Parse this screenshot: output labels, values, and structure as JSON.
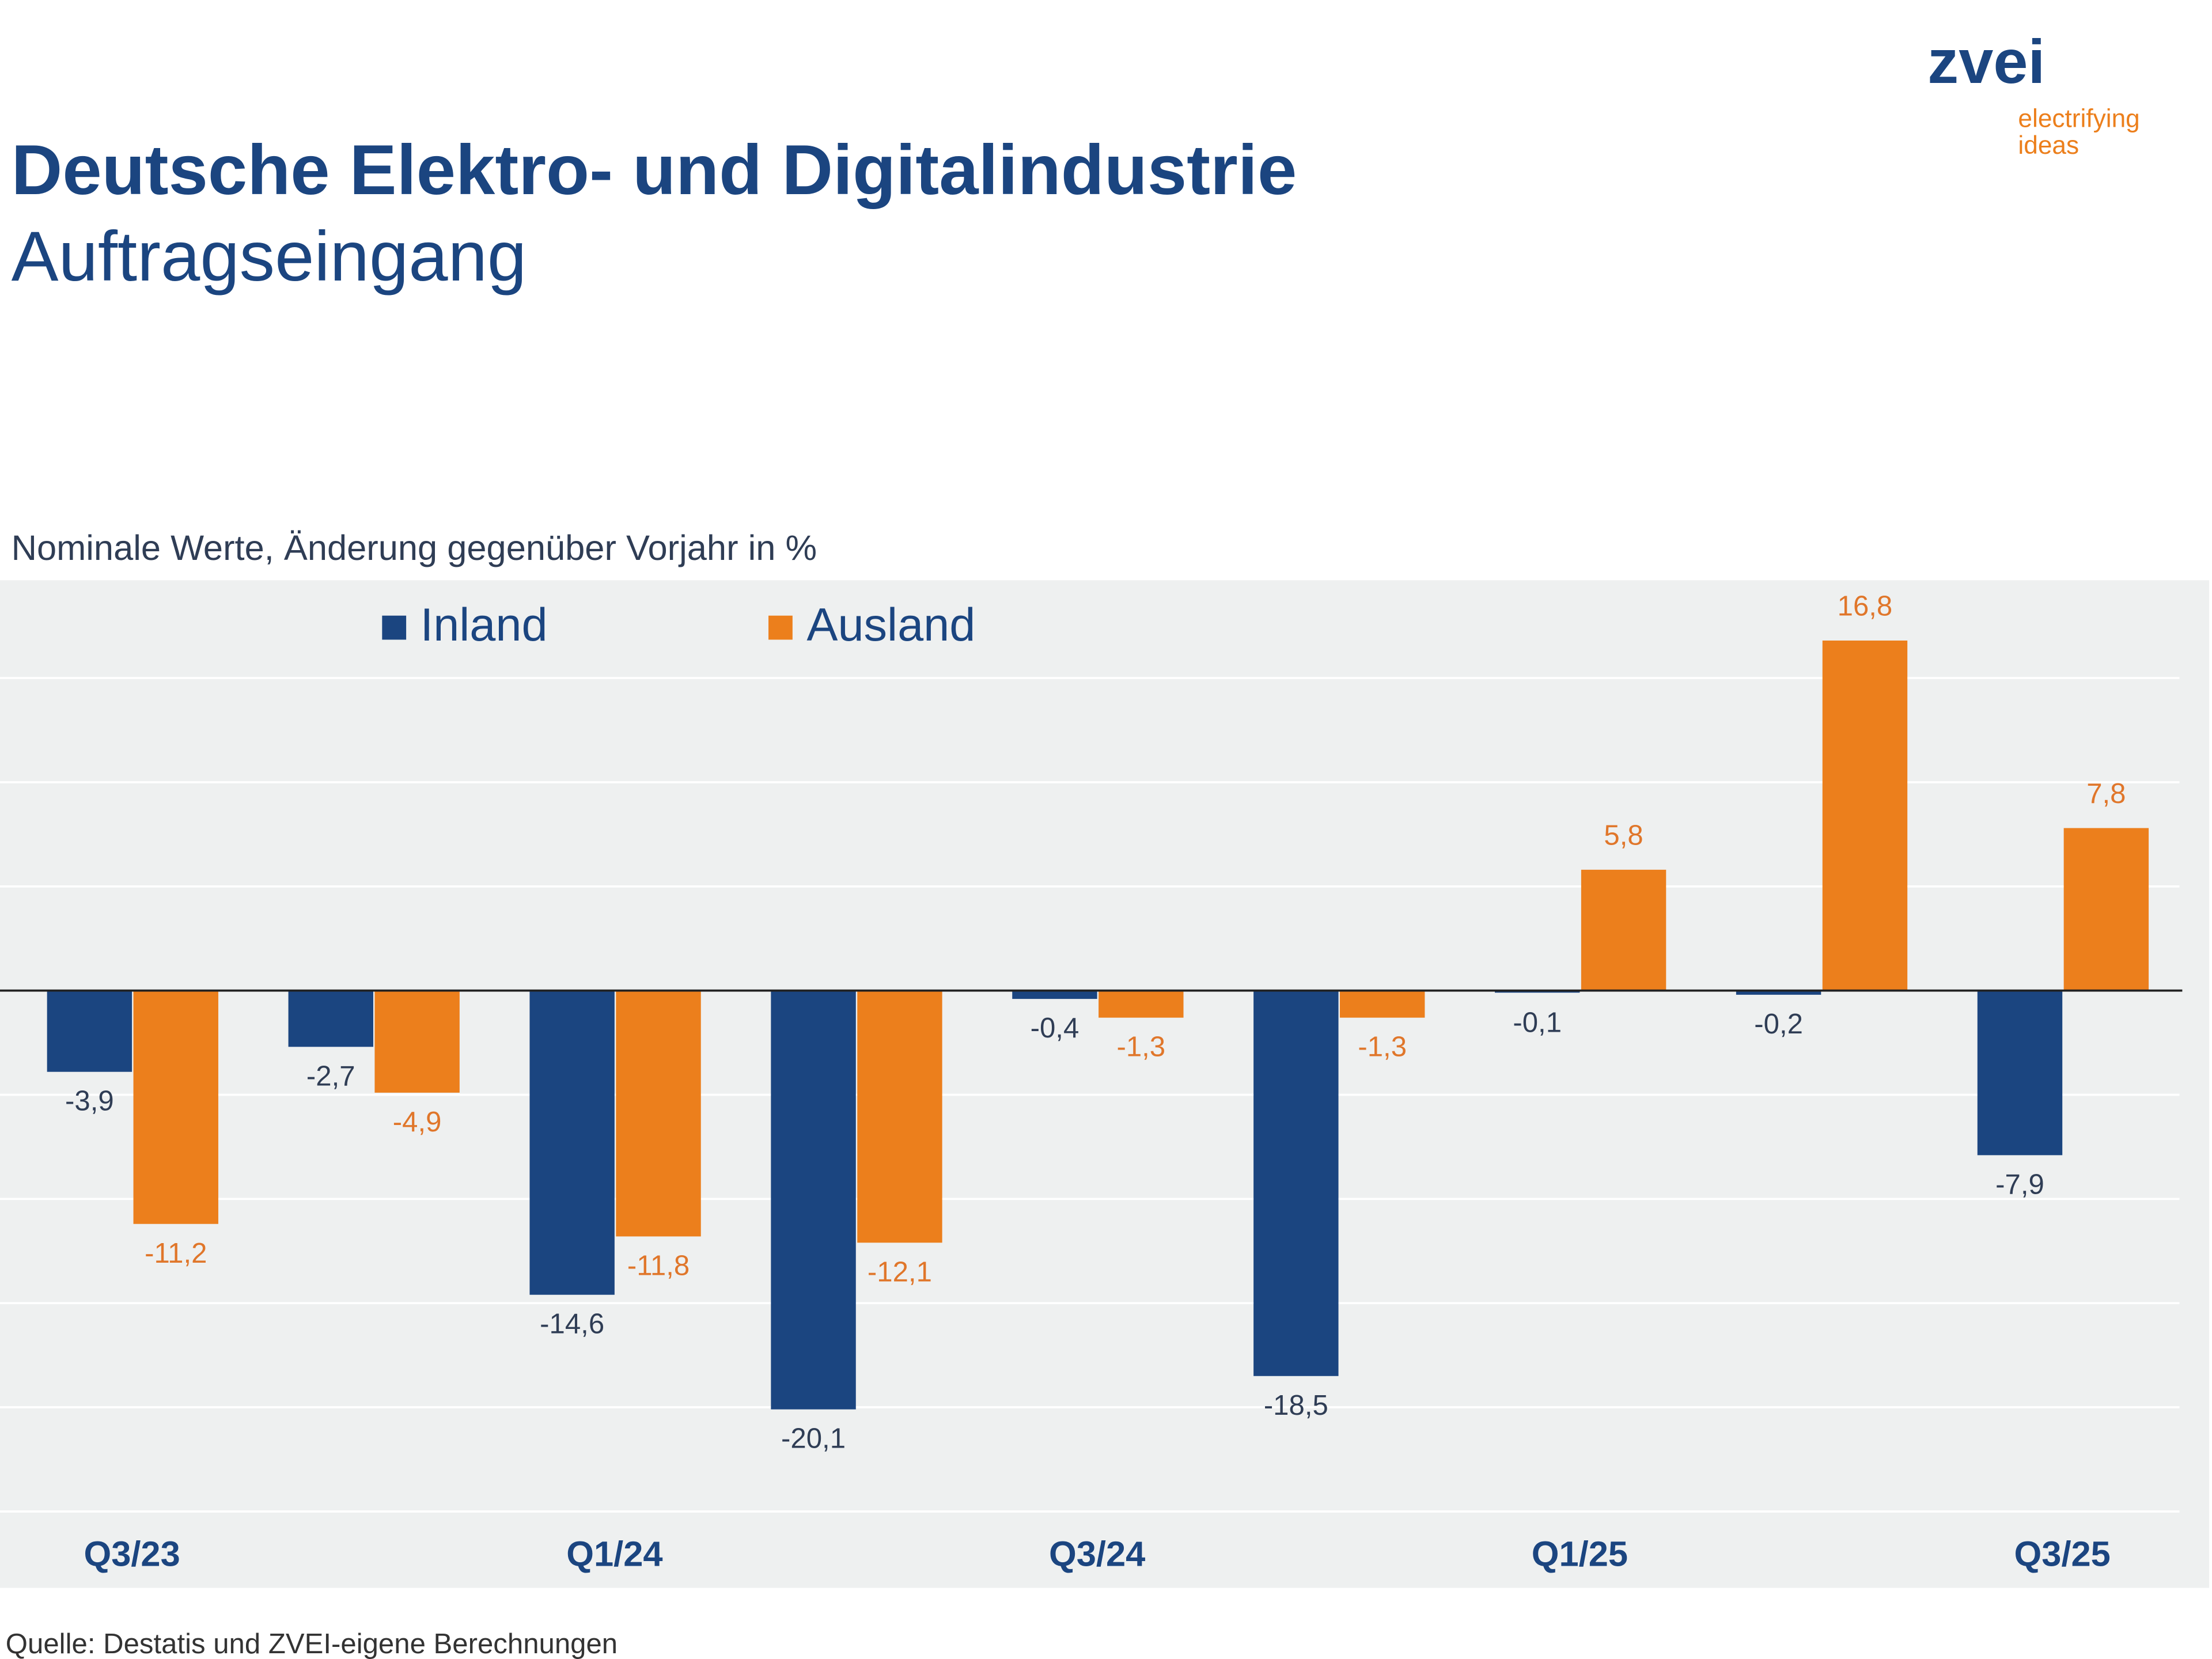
{
  "logo": {
    "brand": "zvei",
    "tagline1": "electrifying",
    "tagline2": "ideas"
  },
  "chart_data": {
    "type": "bar",
    "title": "Deutsche Elektro- und Digitalindustrie",
    "subtitle": "Auftragseingang",
    "y_label": "Nominale Werte, Änderung gegenüber Vorjahr in %",
    "source": "Quelle: Destatis und ZVEI-eigene Berechnungen",
    "categories": [
      "Q3/23",
      null,
      "Q1/24",
      null,
      "Q3/24",
      null,
      "Q1/25",
      null,
      "Q3/25"
    ],
    "series": [
      {
        "name": "Inland",
        "color": "#1b4580",
        "label_color": "#2f3d55",
        "values": [
          -3.9,
          -2.7,
          -14.6,
          -20.1,
          -0.4,
          -18.5,
          -0.1,
          -0.2,
          -7.9
        ],
        "value_labels": [
          "-3,9",
          "-2,7",
          "-14,6",
          "-20,1",
          "-0,4",
          "-18,5",
          "-0,1",
          "-0,2",
          "-7,9"
        ]
      },
      {
        "name": "Ausland",
        "color": "#ec7f1c",
        "label_color": "#e0762a",
        "values": [
          -11.2,
          -4.9,
          -11.8,
          -12.1,
          -1.3,
          -1.3,
          5.8,
          16.8,
          7.8
        ],
        "value_labels": [
          "-11,2",
          "-4,9",
          "-11,8",
          "-12,1",
          "-1,3",
          "-1,3",
          "5,8",
          "16,8",
          "7,8"
        ]
      }
    ],
    "ylim": [
      -25,
      20
    ],
    "yticks": [
      -25,
      -20,
      -15,
      -10,
      -5,
      0,
      5,
      10,
      15,
      20
    ],
    "grid": true
  }
}
